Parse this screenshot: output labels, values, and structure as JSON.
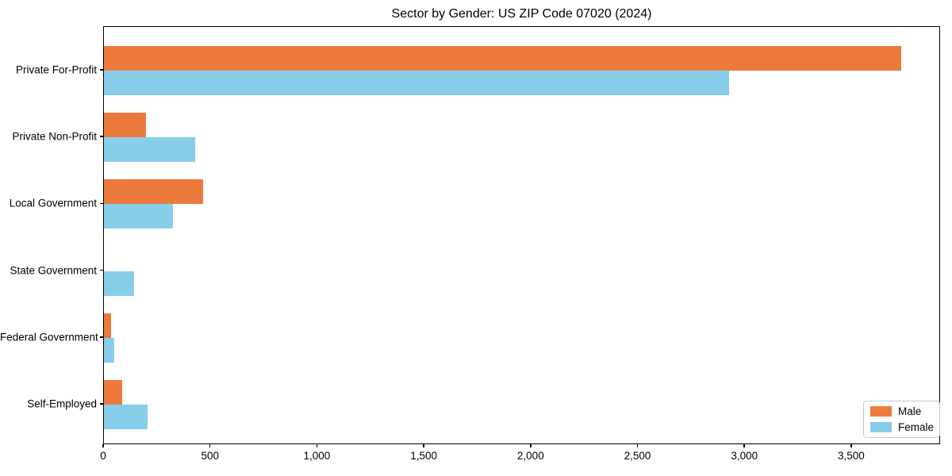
{
  "chart_data": {
    "type": "bar",
    "orientation": "horizontal",
    "title": "Sector by Gender: US ZIP Code 07020 (2024)",
    "categories": [
      "Private For-Profit",
      "Private Non-Profit",
      "Local Government",
      "State Government",
      "Federal Government",
      "Self-Employed"
    ],
    "series": [
      {
        "name": "Male",
        "color": "#ec7a3c",
        "values": [
          3730,
          195,
          463,
          0,
          35,
          85
        ]
      },
      {
        "name": "Female",
        "color": "#87ceeb",
        "values": [
          2925,
          427,
          322,
          140,
          50,
          205
        ]
      }
    ],
    "xlabel": "",
    "ylabel": "",
    "xlim": [
      0,
      3916
    ],
    "xticks": [
      0,
      500,
      1000,
      1500,
      2000,
      2500,
      3000,
      3500
    ],
    "xtick_labels": [
      "0",
      "500",
      "1,000",
      "1,500",
      "2,000",
      "2,500",
      "3,000",
      "3,500"
    ],
    "grid": false,
    "legend": {
      "position": "lower right",
      "labels": [
        "Male",
        "Female"
      ]
    }
  }
}
